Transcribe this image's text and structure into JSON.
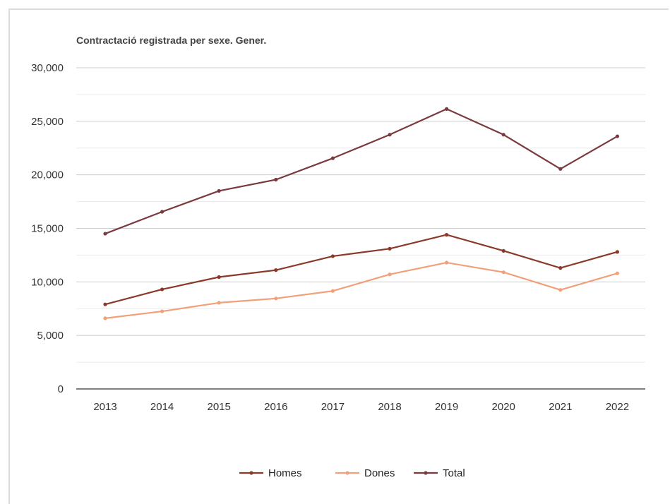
{
  "chart_data": {
    "type": "line",
    "title": "Contractació registrada per sexe. Gener.",
    "xlabel": "",
    "ylabel": "",
    "categories": [
      "2013",
      "2014",
      "2015",
      "2016",
      "2017",
      "2018",
      "2019",
      "2020",
      "2021",
      "2022"
    ],
    "y_ticks": [
      "0",
      "5,000",
      "10,000",
      "15,000",
      "20,000",
      "25,000",
      "30,000"
    ],
    "ylim": [
      0,
      30000
    ],
    "grid": true,
    "legend_position": "bottom",
    "series": [
      {
        "name": "Homes",
        "color": "#8b3a2a",
        "values": [
          7900,
          9300,
          10450,
          11100,
          12400,
          13100,
          14400,
          12900,
          11300,
          12800
        ]
      },
      {
        "name": "Dones",
        "color": "#f0a07a",
        "values": [
          6600,
          7250,
          8050,
          8450,
          9150,
          10700,
          11800,
          10900,
          9250,
          10800
        ]
      },
      {
        "name": "Total",
        "color": "#7a3a3e",
        "values": [
          14500,
          16550,
          18500,
          19550,
          21550,
          23750,
          26150,
          23750,
          20550,
          23600
        ]
      }
    ]
  }
}
